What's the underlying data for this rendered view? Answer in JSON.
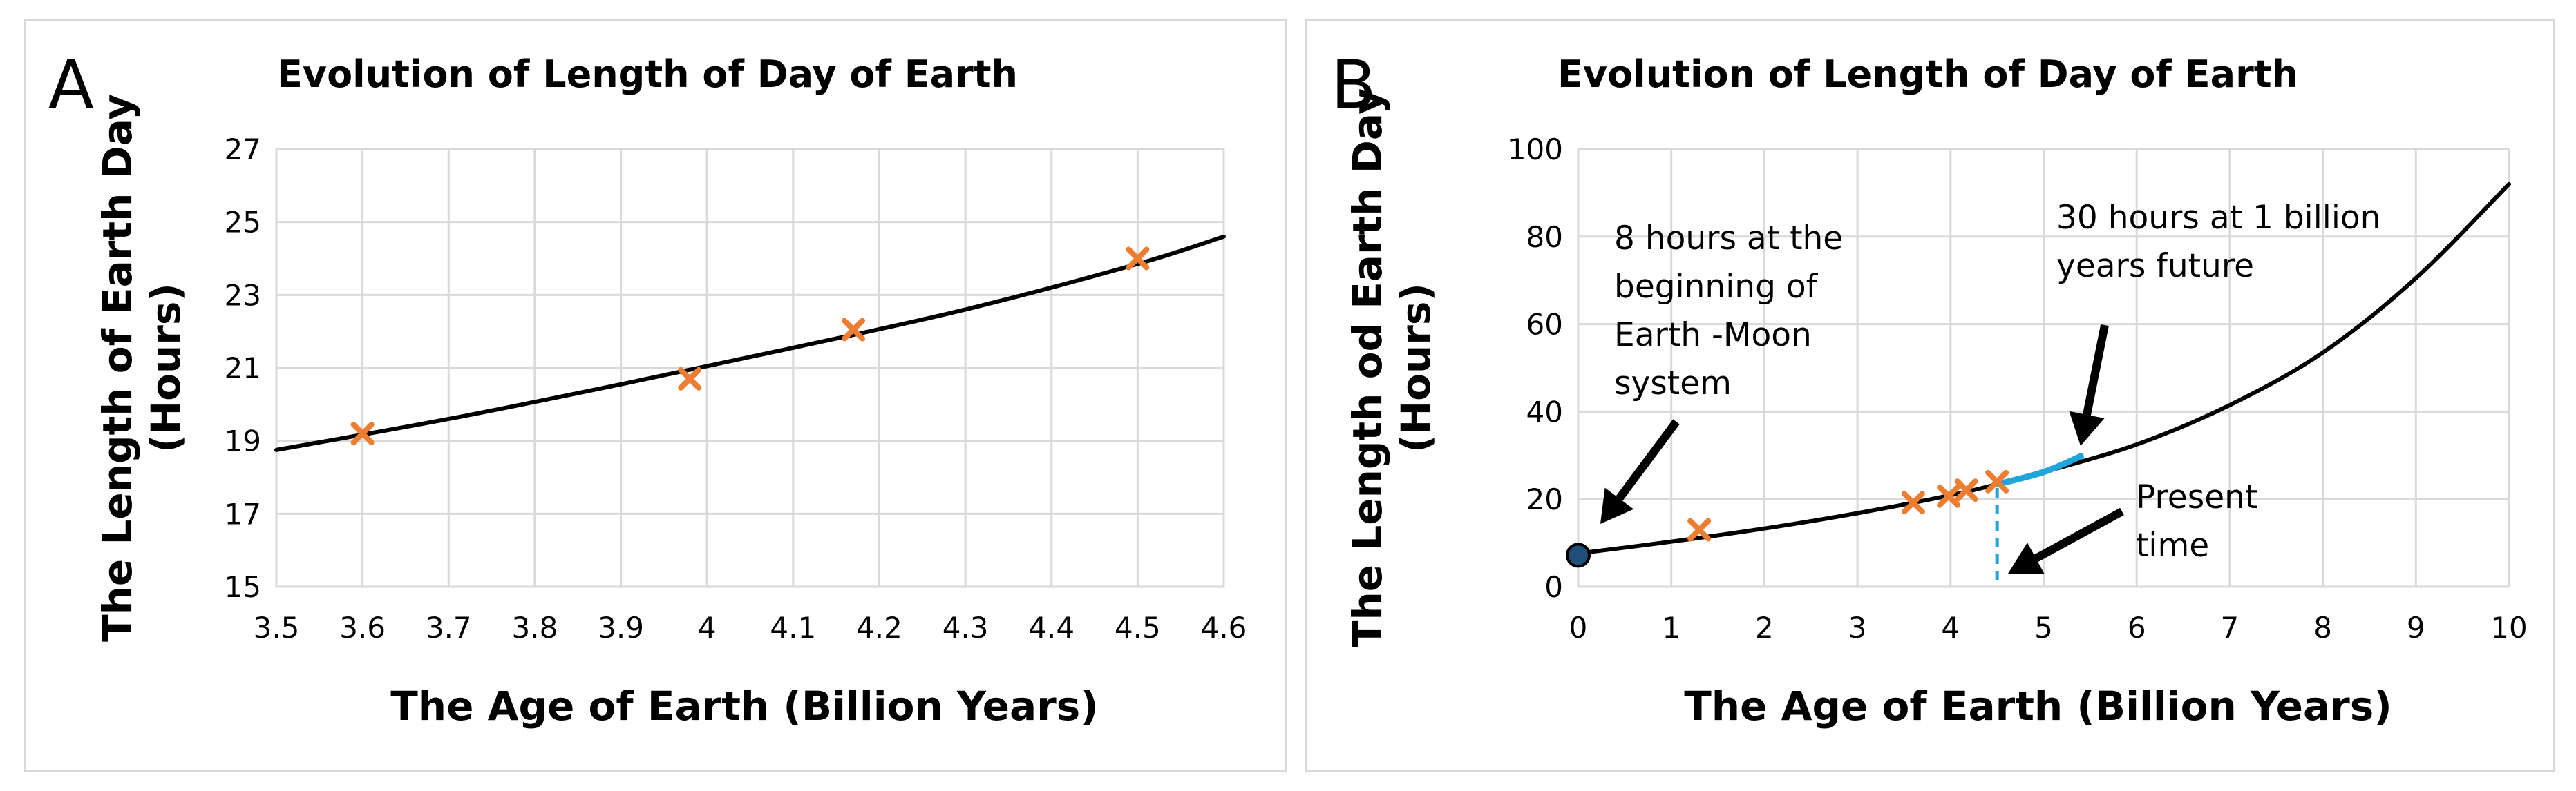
{
  "chart_data": [
    {
      "panel_label": "A",
      "type": "scatter",
      "title": "Evolution of Length of Day of Earth",
      "xlabel": "The Age of Earth (Billion Years)",
      "ylabel": "The  Length of Earth Day (Hours)",
      "xlim": [
        3.5,
        4.6
      ],
      "ylim": [
        15,
        27
      ],
      "x_ticks": [
        "3.5",
        "3.6",
        "3.7",
        "3.8",
        "3.9",
        "4",
        "4.1",
        "4.2",
        "4.3",
        "4.4",
        "4.5",
        "4.6"
      ],
      "y_ticks": [
        "15",
        "17",
        "19",
        "21",
        "23",
        "25",
        "27"
      ],
      "grid": true,
      "series": [
        {
          "marker": "x",
          "color": "#ED7D31",
          "points": [
            {
              "x": 3.6,
              "y": 19.2
            },
            {
              "x": 3.98,
              "y": 20.7
            },
            {
              "x": 4.17,
              "y": 22.05
            },
            {
              "x": 4.5,
              "y": 24.0
            }
          ]
        },
        {
          "style": "line",
          "color": "#000000",
          "points": [
            {
              "x": 3.5,
              "y": 18.75
            },
            {
              "x": 3.7,
              "y": 19.6
            },
            {
              "x": 3.9,
              "y": 20.55
            },
            {
              "x": 4.1,
              "y": 21.55
            },
            {
              "x": 4.3,
              "y": 22.6
            },
            {
              "x": 4.5,
              "y": 23.85
            },
            {
              "x": 4.6,
              "y": 24.6
            }
          ]
        }
      ]
    },
    {
      "panel_label": "B",
      "type": "scatter",
      "title": "Evolution of Length of Day of Earth",
      "xlabel": "The Age of Earth (Billion Years)",
      "ylabel": "The Length od Earth Day (Hours)",
      "xlim": [
        0,
        10
      ],
      "ylim": [
        0,
        100
      ],
      "x_ticks": [
        "0",
        "1",
        "2",
        "3",
        "4",
        "5",
        "6",
        "7",
        "8",
        "9",
        "10"
      ],
      "y_ticks": [
        "0",
        "20",
        "40",
        "60",
        "80",
        "100"
      ],
      "grid": true,
      "series": [
        {
          "marker": "x",
          "color": "#ED7D31",
          "points": [
            {
              "x": 1.3,
              "y": 13
            },
            {
              "x": 3.6,
              "y": 19.2
            },
            {
              "x": 3.98,
              "y": 20.7
            },
            {
              "x": 4.17,
              "y": 22.05
            },
            {
              "x": 4.5,
              "y": 24.0
            }
          ]
        },
        {
          "marker": "circle",
          "color": "#1F4E79",
          "points": [
            {
              "x": 0,
              "y": 7.2
            }
          ]
        },
        {
          "style": "line",
          "color": "#000000",
          "points": [
            {
              "x": 0,
              "y": 7.6
            },
            {
              "x": 1,
              "y": 10.3
            },
            {
              "x": 2,
              "y": 13.3
            },
            {
              "x": 3,
              "y": 16.8
            },
            {
              "x": 4,
              "y": 20.9
            },
            {
              "x": 4.5,
              "y": 23.4
            },
            {
              "x": 5,
              "y": 26.2
            },
            {
              "x": 6,
              "y": 32.5
            },
            {
              "x": 7,
              "y": 41.5
            },
            {
              "x": 8,
              "y": 53.5
            },
            {
              "x": 9,
              "y": 70.5
            },
            {
              "x": 10,
              "y": 92.0
            }
          ]
        },
        {
          "style": "line",
          "color": "#1FA4DC",
          "points": [
            {
              "x": 4.5,
              "y": 23.4
            },
            {
              "x": 5,
              "y": 26.2
            },
            {
              "x": 5.4,
              "y": 29.8
            }
          ]
        }
      ],
      "present_time_x": 4.5,
      "annotations": [
        {
          "lines": [
            "8 hours at the",
            "beginning of",
            "Earth -Moon",
            "system"
          ]
        },
        {
          "lines": [
            "30 hours at 1 billion",
            "years future"
          ]
        },
        {
          "lines": [
            "Present",
            "time"
          ]
        }
      ]
    }
  ]
}
